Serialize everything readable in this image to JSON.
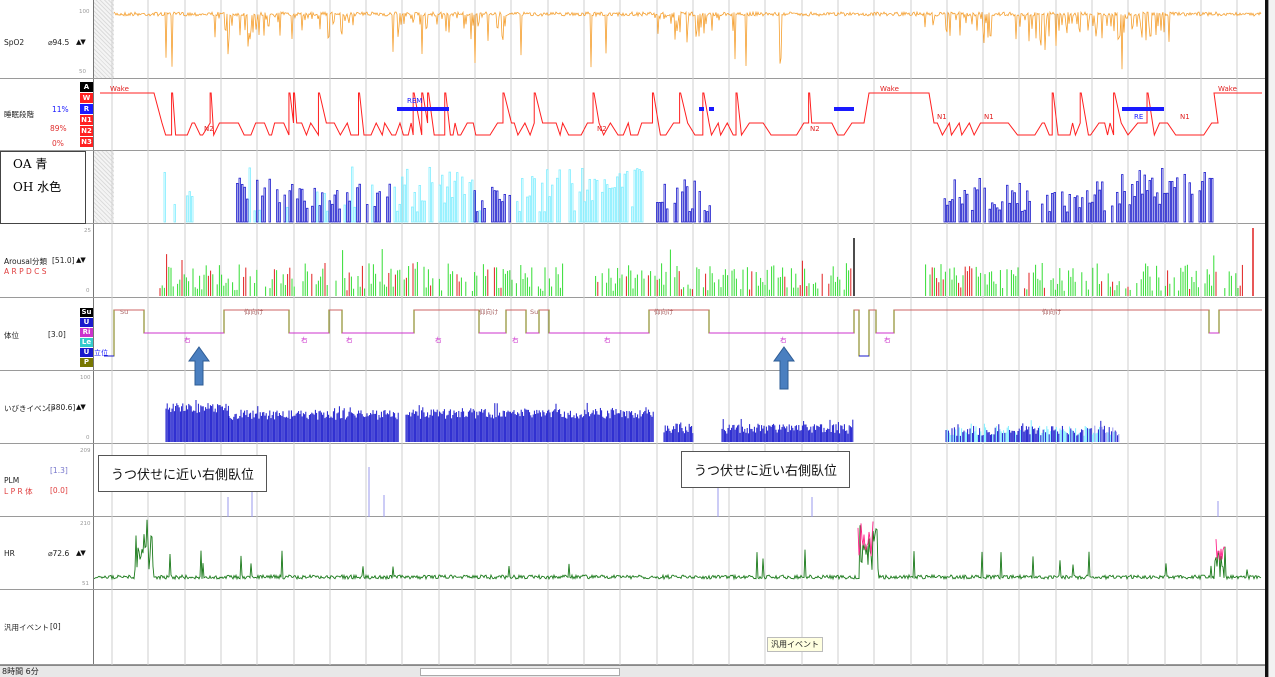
{
  "channels": {
    "spo2": {
      "name": "SpO2",
      "value": "⌀94.5",
      "arrows": "▲▼",
      "tick_top": "100",
      "tick_bottom": "50",
      "color": "#f5a030"
    },
    "stage": {
      "name": "睡眠段階",
      "pct1": "11%",
      "pct2": "89%",
      "pct3": "0%",
      "boxes": [
        "A",
        "W",
        "R",
        "N1",
        "N2",
        "N3"
      ],
      "box_colors": [
        "#000000",
        "#ff2020",
        "#1a1aff",
        "#ff2020",
        "#ff2020",
        "#ff2020"
      ],
      "labels": [
        "Wake",
        "N2",
        "REM",
        "N2",
        "N2",
        "Wake",
        "N1",
        "N1",
        "RE",
        "N1",
        "Wake"
      ],
      "color": "#ff2020"
    },
    "resp": {
      "color_oa": "#1a1acc",
      "color_oh": "#80eeff"
    },
    "arousal": {
      "name": "Arousal分類",
      "value": "[51.0]",
      "arrows": "▲▼",
      "sub": "A R P D C S",
      "tick_top": "25",
      "tick_bottom": "0"
    },
    "position": {
      "name": "体位",
      "value": "[3.0]",
      "boxes": [
        "Su",
        "U",
        "Ri",
        "Le",
        "U",
        "P"
      ],
      "box_colors": [
        "#000000",
        "#1a1acc",
        "#cc33cc",
        "#33cccc",
        "#1a1acc",
        "#777700"
      ],
      "labels": [
        "Su",
        "右",
        "仰向け",
        "右",
        "右",
        "右",
        "仰向け",
        "右",
        "Su",
        "右",
        "仰向け",
        "右",
        "右",
        "仰向け"
      ],
      "left_label": "立位"
    },
    "snore": {
      "name": "いびきイベント",
      "value": "[380.6]",
      "arrows": "▲▼",
      "tick_top": "100",
      "tick_bottom": "0"
    },
    "plm": {
      "name": "PLM",
      "value1": "[1.3]",
      "value2": "[0.0]",
      "sub": "L P R 体",
      "tick_top": "209"
    },
    "hr": {
      "name": "HR",
      "value": "⌀72.6",
      "arrows": "▲▼",
      "tick_top": "210",
      "tick_bottom": "51"
    },
    "generic": {
      "name": "汎用イベント",
      "value": "[0]",
      "event_label": "汎用イベント"
    }
  },
  "legend": {
    "line1": "OA 青",
    "line2": "OH 水色"
  },
  "callouts": {
    "left": "うつ伏せに近い右側臥位",
    "right": "うつ伏せに近い右側臥位"
  },
  "footer": {
    "time": "8時間 6分"
  }
}
